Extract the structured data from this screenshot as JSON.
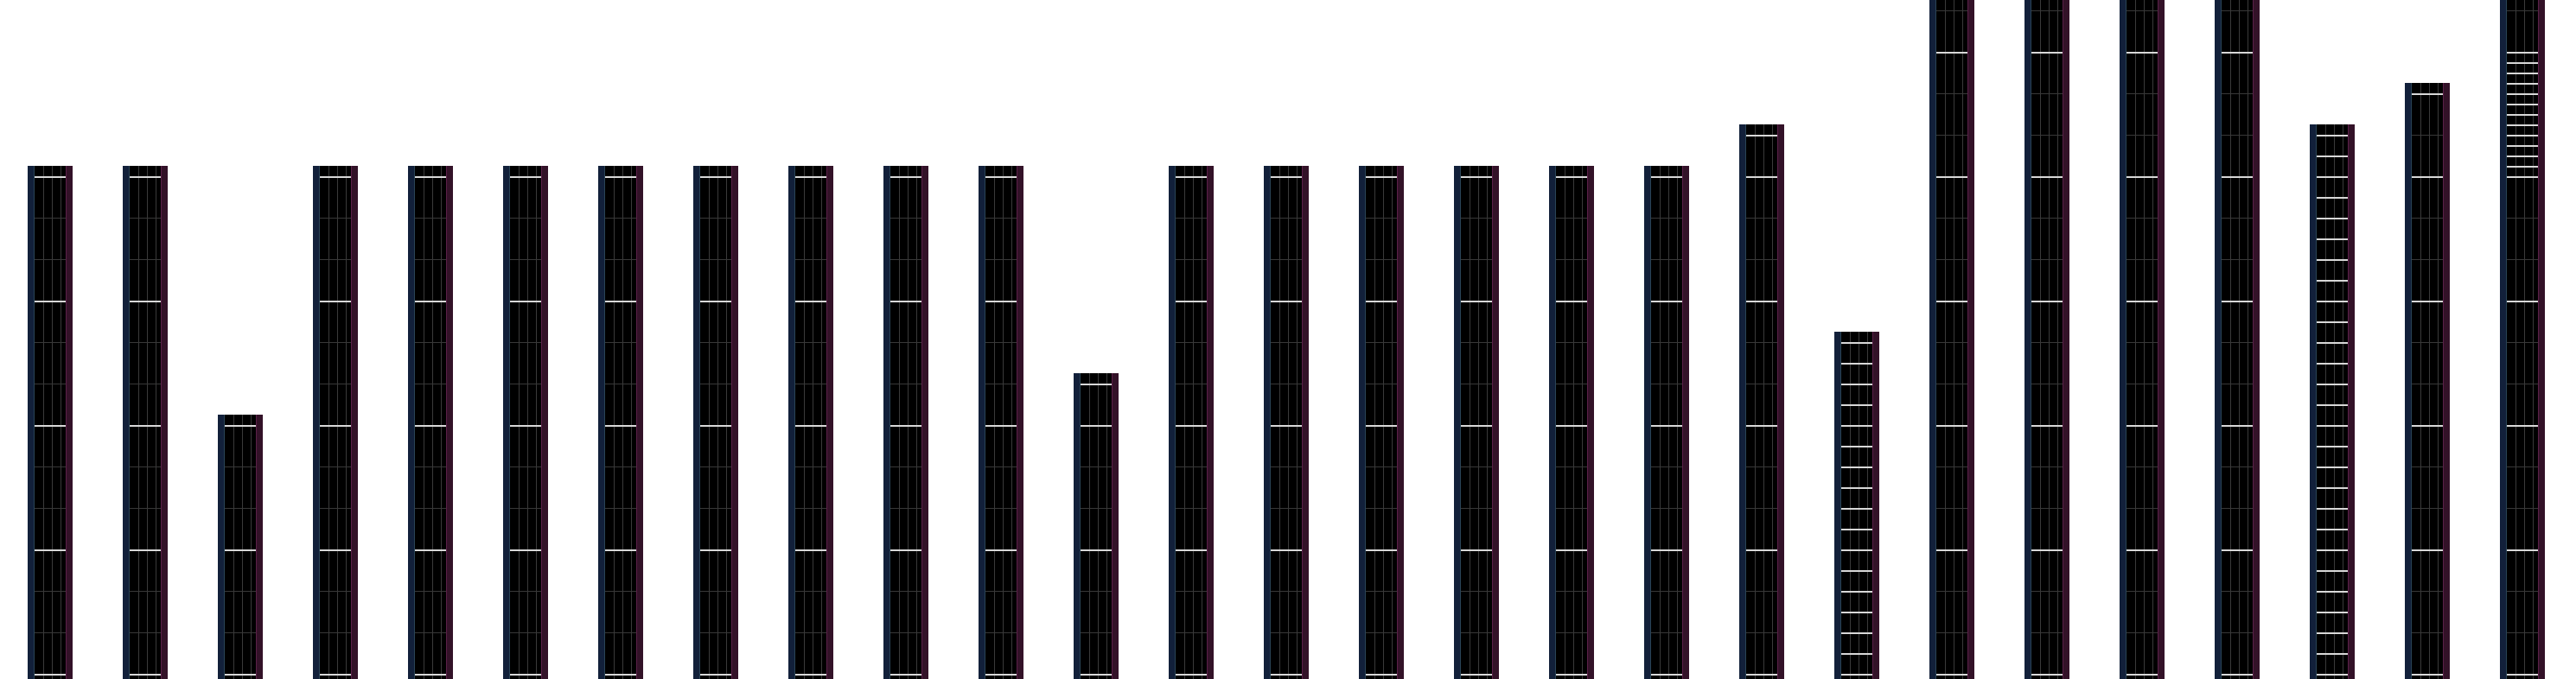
{
  "colors": {
    "background": "#ffffff",
    "bar_fill": "#000000",
    "left_edge": "#12203a",
    "right_edge": "#331228",
    "grid": "#383838",
    "marker": "#d8d8d8"
  },
  "chart_data": {
    "type": "bar",
    "grid": true,
    "values": [
      12,
      12,
      6,
      12,
      12,
      12,
      12,
      12,
      12,
      12,
      12,
      7,
      12,
      12,
      12,
      12,
      12,
      12,
      13,
      8,
      17,
      17,
      17,
      17,
      13,
      14,
      17
    ],
    "dense_markers": [
      false,
      false,
      false,
      false,
      false,
      false,
      false,
      false,
      false,
      false,
      false,
      false,
      false,
      false,
      false,
      false,
      false,
      false,
      false,
      true,
      false,
      false,
      false,
      false,
      true,
      false,
      true
    ]
  }
}
